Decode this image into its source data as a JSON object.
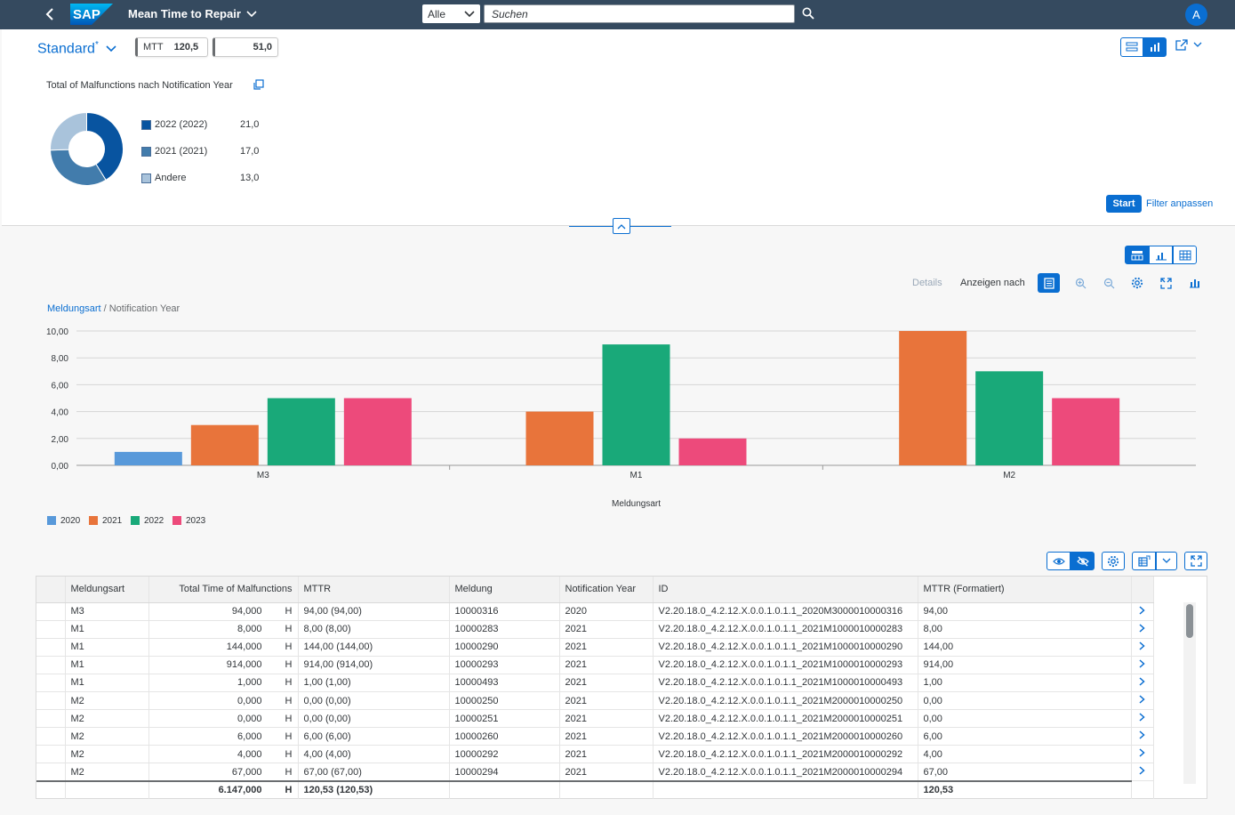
{
  "shell": {
    "app_title": "Mean Time to Repair",
    "logo_text": "SAP",
    "scope": "Alle",
    "search_placeholder": "Suchen",
    "avatar_initial": "A"
  },
  "header": {
    "variant": "Standard",
    "variant_modified": "*",
    "kpis": [
      {
        "label": "MTT",
        "value": "120,5"
      },
      {
        "label": "",
        "value": "51,0"
      }
    ],
    "tile_title": "Total of Malfunctions nach Notification Year",
    "donut": {
      "items": [
        {
          "label": "2022 (2022)",
          "value": 21.0,
          "display": "21,0",
          "color": "#0854a0"
        },
        {
          "label": "2021 (2021)",
          "value": 17.0,
          "display": "17,0",
          "color": "#427cac"
        },
        {
          "label": "Andere",
          "value": 13.0,
          "display": "13,0",
          "color": "#a9c3db"
        }
      ]
    },
    "start_label": "Start",
    "adapt_filter_label": "Filter anpassen"
  },
  "chart_toolbar": {
    "details": "Details",
    "show_by": "Anzeigen nach"
  },
  "breadcrumb": {
    "link": "Meldungsart",
    "rest": " / Notification Year"
  },
  "chart_data": {
    "type": "bar",
    "categories": [
      "M3",
      "M1",
      "M2"
    ],
    "series": [
      {
        "name": "2020",
        "color": "#5899da",
        "values": [
          1,
          null,
          null
        ]
      },
      {
        "name": "2021",
        "color": "#e8743b",
        "values": [
          3,
          4,
          10
        ]
      },
      {
        "name": "2022",
        "color": "#19a979",
        "values": [
          5,
          9,
          7
        ]
      },
      {
        "name": "2023",
        "color": "#ed4a7b",
        "values": [
          5,
          2,
          5
        ]
      }
    ],
    "y_ticks": [
      "0,00",
      "2,00",
      "4,00",
      "6,00",
      "8,00",
      "10,00"
    ],
    "ylim": [
      0,
      10
    ],
    "xlabel": "Meldungsart",
    "ylabel": "",
    "title": "",
    "legend": "bottom-left",
    "grid": true
  },
  "table": {
    "columns": [
      "Meldungsart",
      "Total Time of Malfunctions",
      "MTTR",
      "Meldung",
      "Notification Year",
      "ID",
      "MTTR (Formatiert)"
    ],
    "unit": "H",
    "rows": [
      {
        "art": "M3",
        "total": "94,000",
        "mttr": "94,00 (94,00)",
        "meldung": "10000316",
        "year": "2020",
        "id": "V2.20.18.0_4.2.12.X.0.0.1.0.1.1_2020M3000010000316",
        "fmt": "94,00"
      },
      {
        "art": "M1",
        "total": "8,000",
        "mttr": "8,00 (8,00)",
        "meldung": "10000283",
        "year": "2021",
        "id": "V2.20.18.0_4.2.12.X.0.0.1.0.1.1_2021M1000010000283",
        "fmt": "8,00"
      },
      {
        "art": "M1",
        "total": "144,000",
        "mttr": "144,00 (144,00)",
        "meldung": "10000290",
        "year": "2021",
        "id": "V2.20.18.0_4.2.12.X.0.0.1.0.1.1_2021M1000010000290",
        "fmt": "144,00"
      },
      {
        "art": "M1",
        "total": "914,000",
        "mttr": "914,00 (914,00)",
        "meldung": "10000293",
        "year": "2021",
        "id": "V2.20.18.0_4.2.12.X.0.0.1.0.1.1_2021M1000010000293",
        "fmt": "914,00"
      },
      {
        "art": "M1",
        "total": "1,000",
        "mttr": "1,00 (1,00)",
        "meldung": "10000493",
        "year": "2021",
        "id": "V2.20.18.0_4.2.12.X.0.0.1.0.1.1_2021M1000010000493",
        "fmt": "1,00"
      },
      {
        "art": "M2",
        "total": "0,000",
        "mttr": "0,00 (0,00)",
        "meldung": "10000250",
        "year": "2021",
        "id": "V2.20.18.0_4.2.12.X.0.0.1.0.1.1_2021M2000010000250",
        "fmt": "0,00"
      },
      {
        "art": "M2",
        "total": "0,000",
        "mttr": "0,00 (0,00)",
        "meldung": "10000251",
        "year": "2021",
        "id": "V2.20.18.0_4.2.12.X.0.0.1.0.1.1_2021M2000010000251",
        "fmt": "0,00"
      },
      {
        "art": "M2",
        "total": "6,000",
        "mttr": "6,00 (6,00)",
        "meldung": "10000260",
        "year": "2021",
        "id": "V2.20.18.0_4.2.12.X.0.0.1.0.1.1_2021M2000010000260",
        "fmt": "6,00"
      },
      {
        "art": "M2",
        "total": "4,000",
        "mttr": "4,00 (4,00)",
        "meldung": "10000292",
        "year": "2021",
        "id": "V2.20.18.0_4.2.12.X.0.0.1.0.1.1_2021M2000010000292",
        "fmt": "4,00"
      },
      {
        "art": "M2",
        "total": "67,000",
        "mttr": "67,00 (67,00)",
        "meldung": "10000294",
        "year": "2021",
        "id": "V2.20.18.0_4.2.12.X.0.0.1.0.1.1_2021M2000010000294",
        "fmt": "67,00"
      }
    ],
    "totals": {
      "total": "6.147,000",
      "mttr": "120,53 (120,53)",
      "fmt": "120,53"
    }
  }
}
